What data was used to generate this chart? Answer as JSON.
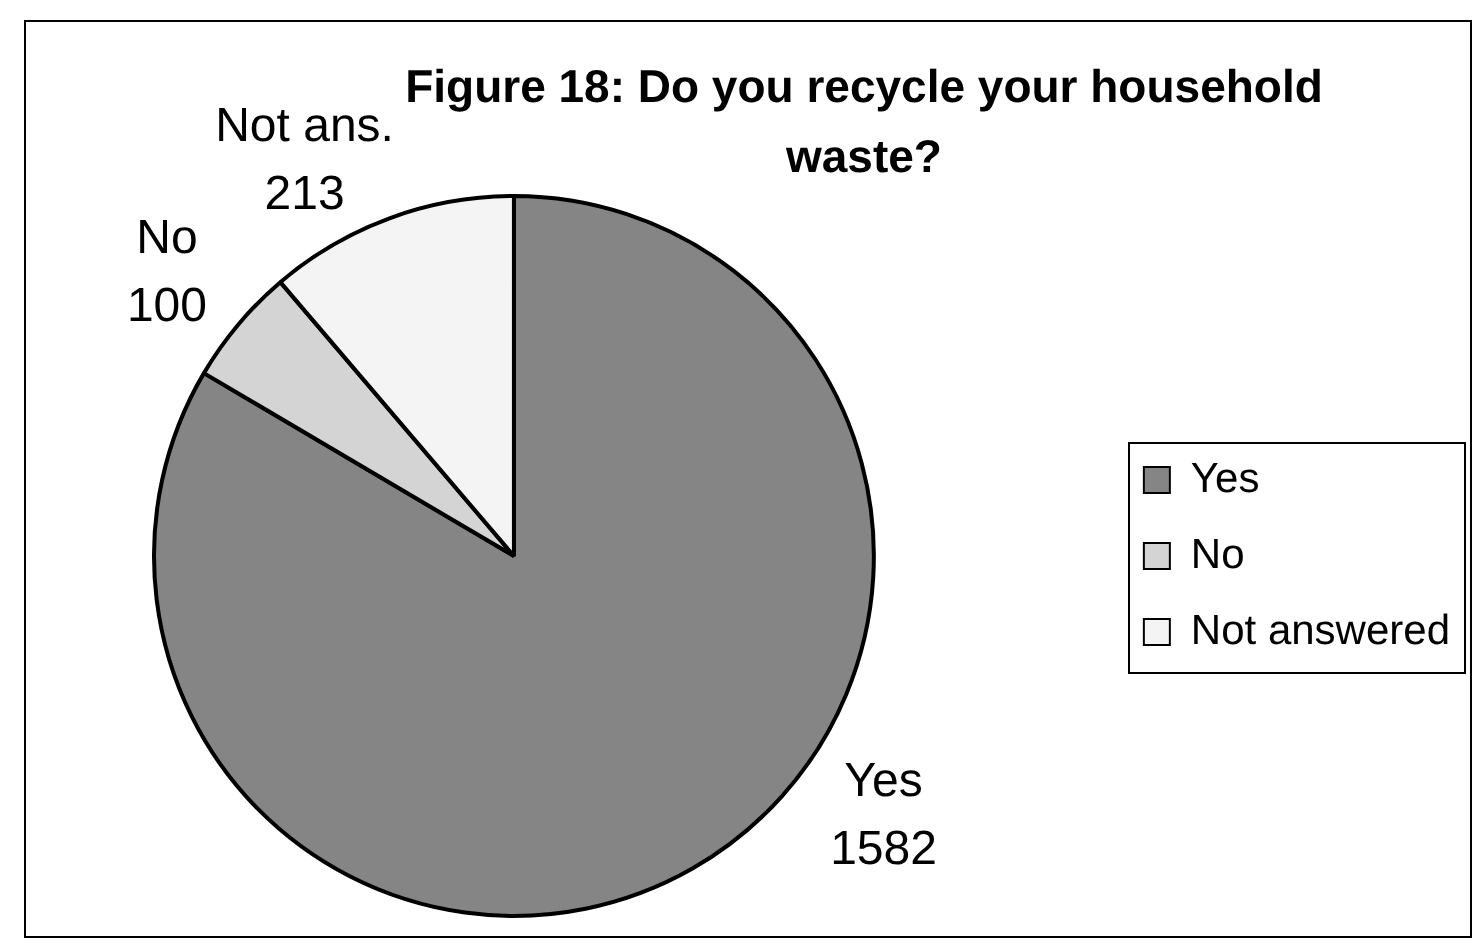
{
  "chart_data": {
    "type": "pie",
    "title": "Figure 18: Do you recycle your household waste?",
    "categories": [
      "Yes",
      "No",
      "Not answered"
    ],
    "values": [
      1582,
      100,
      213
    ],
    "colors": [
      "#858585",
      "#d4d4d4",
      "#f4f4f4"
    ],
    "value_labels": [
      "Yes\n1582",
      "No\n100",
      "Not ans.\n213"
    ],
    "legend": "right"
  }
}
